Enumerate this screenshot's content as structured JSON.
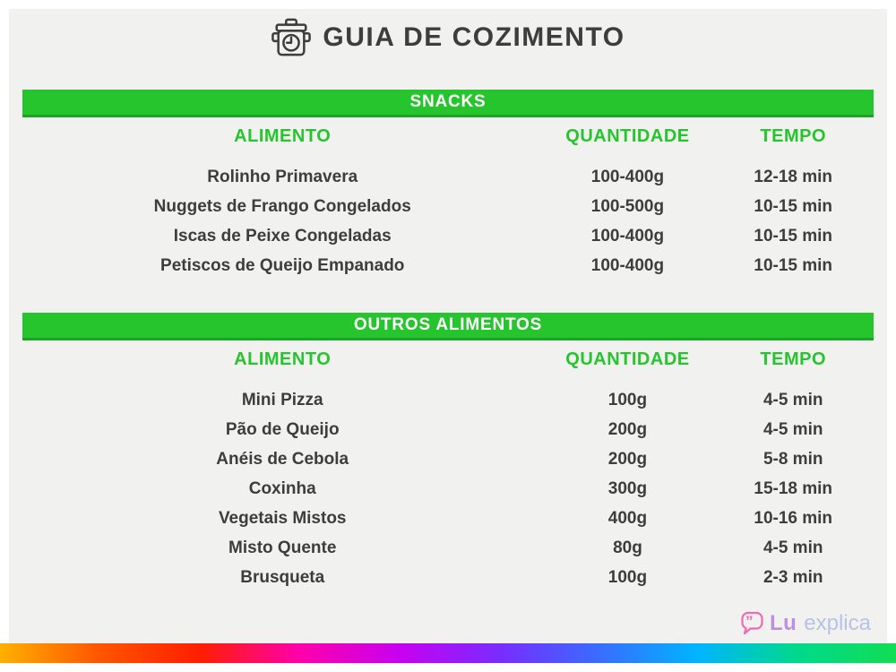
{
  "title": "GUIA DE COZIMENTO",
  "header_icon": "pot-with-clock-icon",
  "columns": [
    "ALIMENTO",
    "QUANTIDADE",
    "TEMPO"
  ],
  "sections": [
    {
      "name": "SNACKS",
      "rows": [
        [
          "Rolinho Primavera",
          "100-400g",
          "12-18 min"
        ],
        [
          "Nuggets de Frango Congelados",
          "100-500g",
          "10-15 min"
        ],
        [
          "Iscas de Peixe Congeladas",
          "100-400g",
          "10-15 min"
        ],
        [
          "Petiscos de Queijo Empanado",
          "100-400g",
          "10-15 min"
        ]
      ]
    },
    {
      "name": "OUTROS ALIMENTOS",
      "rows": [
        [
          "Mini Pizza",
          "100g",
          "4-5 min"
        ],
        [
          "Pão de Queijo",
          "200g",
          "4-5 min"
        ],
        [
          "Anéis de Cebola",
          "200g",
          "5-8 min"
        ],
        [
          "Coxinha",
          "300g",
          "15-18 min"
        ],
        [
          "Vegetais Mistos",
          "400g",
          "10-16 min"
        ],
        [
          "Misto Quente",
          "80g",
          "4-5 min"
        ],
        [
          "Brusqueta",
          "100g",
          "2-3 min"
        ]
      ]
    }
  ],
  "brand": {
    "icon": "speech-bubble-quotes-icon",
    "bold": "Lu",
    "light": "explica"
  },
  "colors": {
    "green": "#26c42d",
    "green_dark_edge": "#1ba325",
    "text_dark": "#3d3d3d",
    "background": "#f1f1ef",
    "brand_pink": "#f06ab2",
    "brand_purple": "#bd8fdf",
    "brand_blue": "#b7c3e6",
    "rainbow": [
      "#ffb000",
      "#ff5500",
      "#ff1e00",
      "#ff00aa",
      "#c800f0",
      "#7a2bff",
      "#3a6bff",
      "#00b4ff",
      "#00d98c",
      "#12dd55"
    ]
  }
}
